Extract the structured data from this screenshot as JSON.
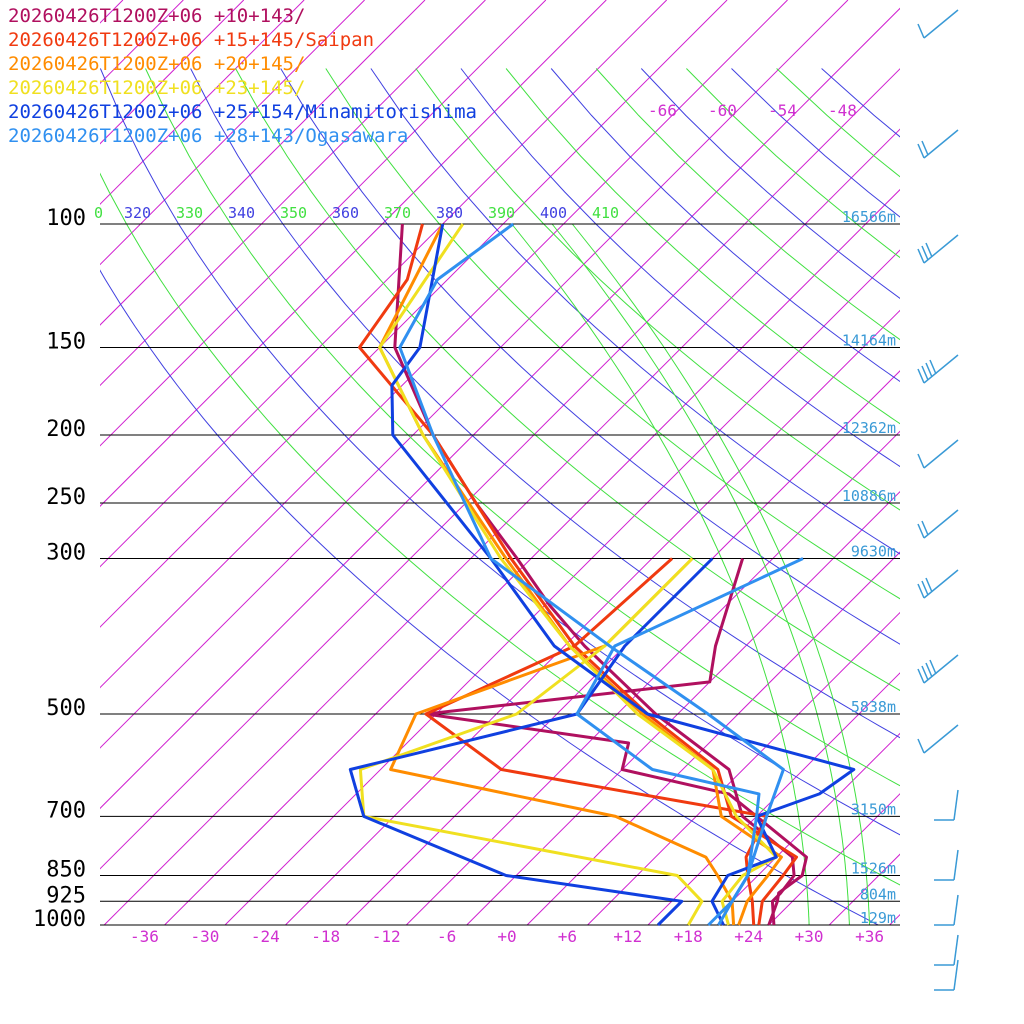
{
  "chart_data": {
    "type": "line",
    "title": "",
    "xlabel": "",
    "ylabel": "",
    "pressure_levels": [
      {
        "p": 100,
        "label": "100",
        "height": "16566m"
      },
      {
        "p": 150,
        "label": "150",
        "height": "14164m"
      },
      {
        "p": 200,
        "label": "200",
        "height": "12362m"
      },
      {
        "p": 250,
        "label": "250",
        "height": "10886m"
      },
      {
        "p": 300,
        "label": "300",
        "height": "9630m"
      },
      {
        "p": 500,
        "label": "500",
        "height": "5838m"
      },
      {
        "p": 700,
        "label": "700",
        "height": "3150m"
      },
      {
        "p": 850,
        "label": "850",
        "height": "1526m"
      },
      {
        "p": 925,
        "label": "925",
        "height": "804m"
      },
      {
        "p": 1000,
        "label": "1000",
        "height": "129m"
      }
    ],
    "x_ticks": [
      {
        "v": -36,
        "label": "-36"
      },
      {
        "v": -30,
        "label": "-30"
      },
      {
        "v": -24,
        "label": "-24"
      },
      {
        "v": -18,
        "label": "-18"
      },
      {
        "v": -12,
        "label": "-12"
      },
      {
        "v": -6,
        "label": "-6"
      },
      {
        "v": 0,
        "label": "+0"
      },
      {
        "v": 6,
        "label": "+6"
      },
      {
        "v": 12,
        "label": "+12"
      },
      {
        "v": 18,
        "label": "+18"
      },
      {
        "v": 24,
        "label": "+24"
      },
      {
        "v": 30,
        "label": "+30"
      },
      {
        "v": 36,
        "label": "+36"
      }
    ],
    "isotherm_labels": [
      {
        "v": -66,
        "label": "-66"
      },
      {
        "v": -60,
        "label": "-60"
      },
      {
        "v": -54,
        "label": "-54"
      },
      {
        "v": -48,
        "label": "-48"
      }
    ],
    "theta_labels": [
      "0",
      "320",
      "330",
      "340",
      "350",
      "360",
      "370",
      "380",
      "390",
      "400",
      "410"
    ],
    "series": [
      {
        "name": "20260426T1200Z+06 +10+143/",
        "color": "#b0105f",
        "temp": [
          [
            1000,
            26
          ],
          [
            925,
            24.5
          ],
          [
            900,
            23.8
          ],
          [
            850,
            24.4
          ],
          [
            800,
            23
          ],
          [
            700,
            14
          ],
          [
            650,
            9
          ],
          [
            600,
            -4
          ],
          [
            550,
            -6
          ],
          [
            500,
            -29
          ],
          [
            450,
            -4
          ],
          [
            400,
            -7
          ],
          [
            300,
            -13
          ]
        ],
        "env": [
          [
            1000,
            26.5
          ],
          [
            925,
            24
          ],
          [
            900,
            24
          ],
          [
            850,
            23.6
          ],
          [
            800,
            21.6
          ],
          [
            700,
            12.6
          ],
          [
            600,
            6.6
          ],
          [
            500,
            -6.2
          ],
          [
            400,
            -20
          ],
          [
            350,
            -27.5
          ],
          [
            300,
            -35.4
          ],
          [
            250,
            -45
          ],
          [
            200,
            -56
          ],
          [
            150,
            -68.5
          ],
          [
            100,
            -80
          ]
        ]
      },
      {
        "name": "20260426T1200Z+06 +15+145/Saipan",
        "color": "#f03a10",
        "temp": [
          [
            1000,
            24.5
          ],
          [
            925,
            22
          ],
          [
            850,
            19
          ],
          [
            800,
            17
          ],
          [
            700,
            15
          ],
          [
            650,
            0
          ],
          [
            600,
            -16
          ],
          [
            500,
            -29
          ],
          [
            400,
            -21
          ],
          [
            300,
            -20
          ]
        ],
        "env": [
          [
            1000,
            25
          ],
          [
            925,
            23
          ],
          [
            850,
            22.5
          ],
          [
            800,
            22
          ],
          [
            700,
            11.5
          ],
          [
            600,
            5.5
          ],
          [
            500,
            -7
          ],
          [
            400,
            -21
          ],
          [
            300,
            -36
          ],
          [
            200,
            -56
          ],
          [
            150,
            -72
          ],
          [
            120,
            -74
          ],
          [
            100,
            -78
          ]
        ]
      },
      {
        "name": "20260426T1200Z+06 +20+145/",
        "color": "#ff8c00",
        "temp": [
          [
            1000,
            22.5
          ],
          [
            925,
            20
          ],
          [
            850,
            16
          ],
          [
            800,
            13
          ],
          [
            700,
            0
          ],
          [
            600,
            -27
          ],
          [
            500,
            -30
          ],
          [
            400,
            -18
          ],
          [
            300,
            -18
          ]
        ],
        "env": [
          [
            1000,
            23
          ],
          [
            925,
            21.5
          ],
          [
            850,
            21
          ],
          [
            800,
            20.5
          ],
          [
            700,
            10.5
          ],
          [
            600,
            5
          ],
          [
            500,
            -7.5
          ],
          [
            400,
            -21.5
          ],
          [
            300,
            -36.5
          ],
          [
            200,
            -57
          ],
          [
            150,
            -70
          ],
          [
            100,
            -76
          ]
        ]
      },
      {
        "name": "20260426T1200Z+06 +23+145/",
        "color": "#f0e020",
        "temp": [
          [
            1000,
            18
          ],
          [
            925,
            17
          ],
          [
            850,
            12
          ],
          [
            700,
            -25
          ],
          [
            600,
            -30
          ],
          [
            500,
            -20
          ],
          [
            400,
            -18
          ],
          [
            300,
            -18
          ]
        ],
        "env": [
          [
            1000,
            22
          ],
          [
            925,
            19
          ],
          [
            850,
            18.5
          ],
          [
            800,
            20
          ],
          [
            700,
            12
          ],
          [
            600,
            5
          ],
          [
            500,
            -8
          ],
          [
            400,
            -21.5
          ],
          [
            300,
            -37
          ],
          [
            200,
            -57
          ],
          [
            150,
            -70
          ],
          [
            100,
            -74
          ]
        ]
      },
      {
        "name": "20260426T1200Z+06 +25+154/Minamitorishima",
        "color": "#1040e0",
        "temp": [
          [
            1000,
            15
          ],
          [
            925,
            15
          ],
          [
            850,
            -5
          ],
          [
            700,
            -25
          ],
          [
            600,
            -31
          ],
          [
            500,
            -14
          ],
          [
            400,
            -16
          ],
          [
            300,
            -16
          ]
        ],
        "env": [
          [
            1000,
            21.5
          ],
          [
            925,
            18
          ],
          [
            850,
            17
          ],
          [
            800,
            20
          ],
          [
            700,
            14
          ],
          [
            650,
            18
          ],
          [
            600,
            19
          ],
          [
            500,
            -7
          ],
          [
            400,
            -23
          ],
          [
            300,
            -38
          ],
          [
            200,
            -60
          ],
          [
            170,
            -65
          ],
          [
            150,
            -66
          ],
          [
            100,
            -76
          ]
        ]
      },
      {
        "name": "20260426T1200Z+06 +28+143/Ogasawara",
        "color": "#3090f0",
        "temp": [
          [
            1000,
            20
          ],
          [
            925,
            20
          ],
          [
            850,
            19
          ],
          [
            700,
            14
          ],
          [
            650,
            12
          ],
          [
            600,
            -1
          ],
          [
            500,
            -14
          ],
          [
            400,
            -17
          ],
          [
            300,
            -7
          ]
        ],
        "env": [
          [
            1000,
            21
          ],
          [
            925,
            20
          ],
          [
            850,
            19
          ],
          [
            700,
            15
          ],
          [
            600,
            12
          ],
          [
            500,
            -1
          ],
          [
            400,
            -17.5
          ],
          [
            300,
            -38
          ],
          [
            200,
            -56
          ],
          [
            150,
            -68
          ],
          [
            120,
            -71
          ],
          [
            100,
            -69
          ]
        ]
      }
    ]
  }
}
